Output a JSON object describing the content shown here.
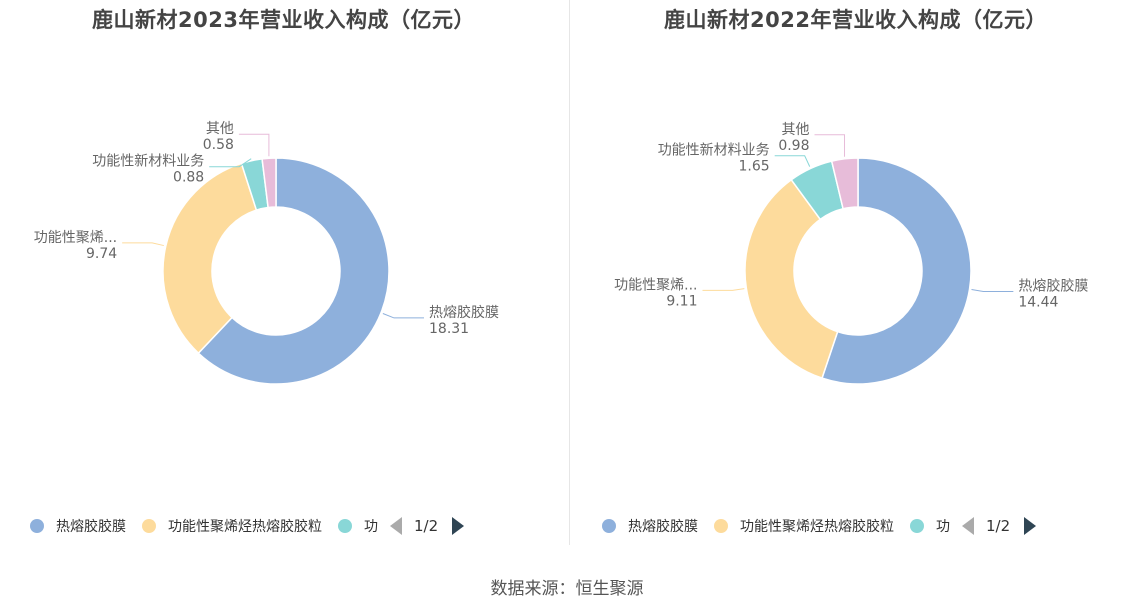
{
  "source_text": "数据来源：恒生聚源",
  "chart_data": [
    {
      "type": "pie",
      "title": "鹿山新材2023年营业收入构成（亿元）",
      "series": [
        {
          "name": "热熔胶胶膜",
          "label": "热熔胶胶膜",
          "value": 18.31,
          "value_text": "18.31",
          "color": "#8eb0dc"
        },
        {
          "name": "功能性聚烯烃热熔胶胶粒",
          "label": "功能性聚烯...",
          "value": 9.74,
          "value_text": "9.74",
          "color": "#fddb9c"
        },
        {
          "name": "功能性新材料业务",
          "label": "功能性新材料业务",
          "value": 0.88,
          "value_text": "0.88",
          "color": "#89d7d7"
        },
        {
          "name": "其他",
          "label": "其他",
          "value": 0.58,
          "value_text": "0.58",
          "color": "#e7bcd9"
        }
      ],
      "legend": {
        "items": [
          {
            "label": "热熔胶胶膜",
            "color": "#8eb0dc"
          },
          {
            "label": "功能性聚烯烃热熔胶胶粒",
            "color": "#fddb9c"
          },
          {
            "label": "功",
            "color": "#89d7d7"
          }
        ],
        "page": "1/2",
        "placement": "bottom"
      }
    },
    {
      "type": "pie",
      "title": "鹿山新材2022年营业收入构成（亿元）",
      "series": [
        {
          "name": "热熔胶胶膜",
          "label": "热熔胶胶膜",
          "value": 14.44,
          "value_text": "14.44",
          "color": "#8eb0dc"
        },
        {
          "name": "功能性聚烯烃热熔胶胶粒",
          "label": "功能性聚烯...",
          "value": 9.11,
          "value_text": "9.11",
          "color": "#fddb9c"
        },
        {
          "name": "功能性新材料业务",
          "label": "功能性新材料业务",
          "value": 1.65,
          "value_text": "1.65",
          "color": "#89d7d7"
        },
        {
          "name": "其他",
          "label": "其他",
          "value": 0.98,
          "value_text": "0.98",
          "color": "#e7bcd9"
        }
      ],
      "legend": {
        "items": [
          {
            "label": "热熔胶胶膜",
            "color": "#8eb0dc"
          },
          {
            "label": "功能性聚烯烃热熔胶胶粒",
            "color": "#fddb9c"
          },
          {
            "label": "功",
            "color": "#89d7d7"
          }
        ],
        "page": "1/2",
        "placement": "bottom"
      }
    }
  ]
}
